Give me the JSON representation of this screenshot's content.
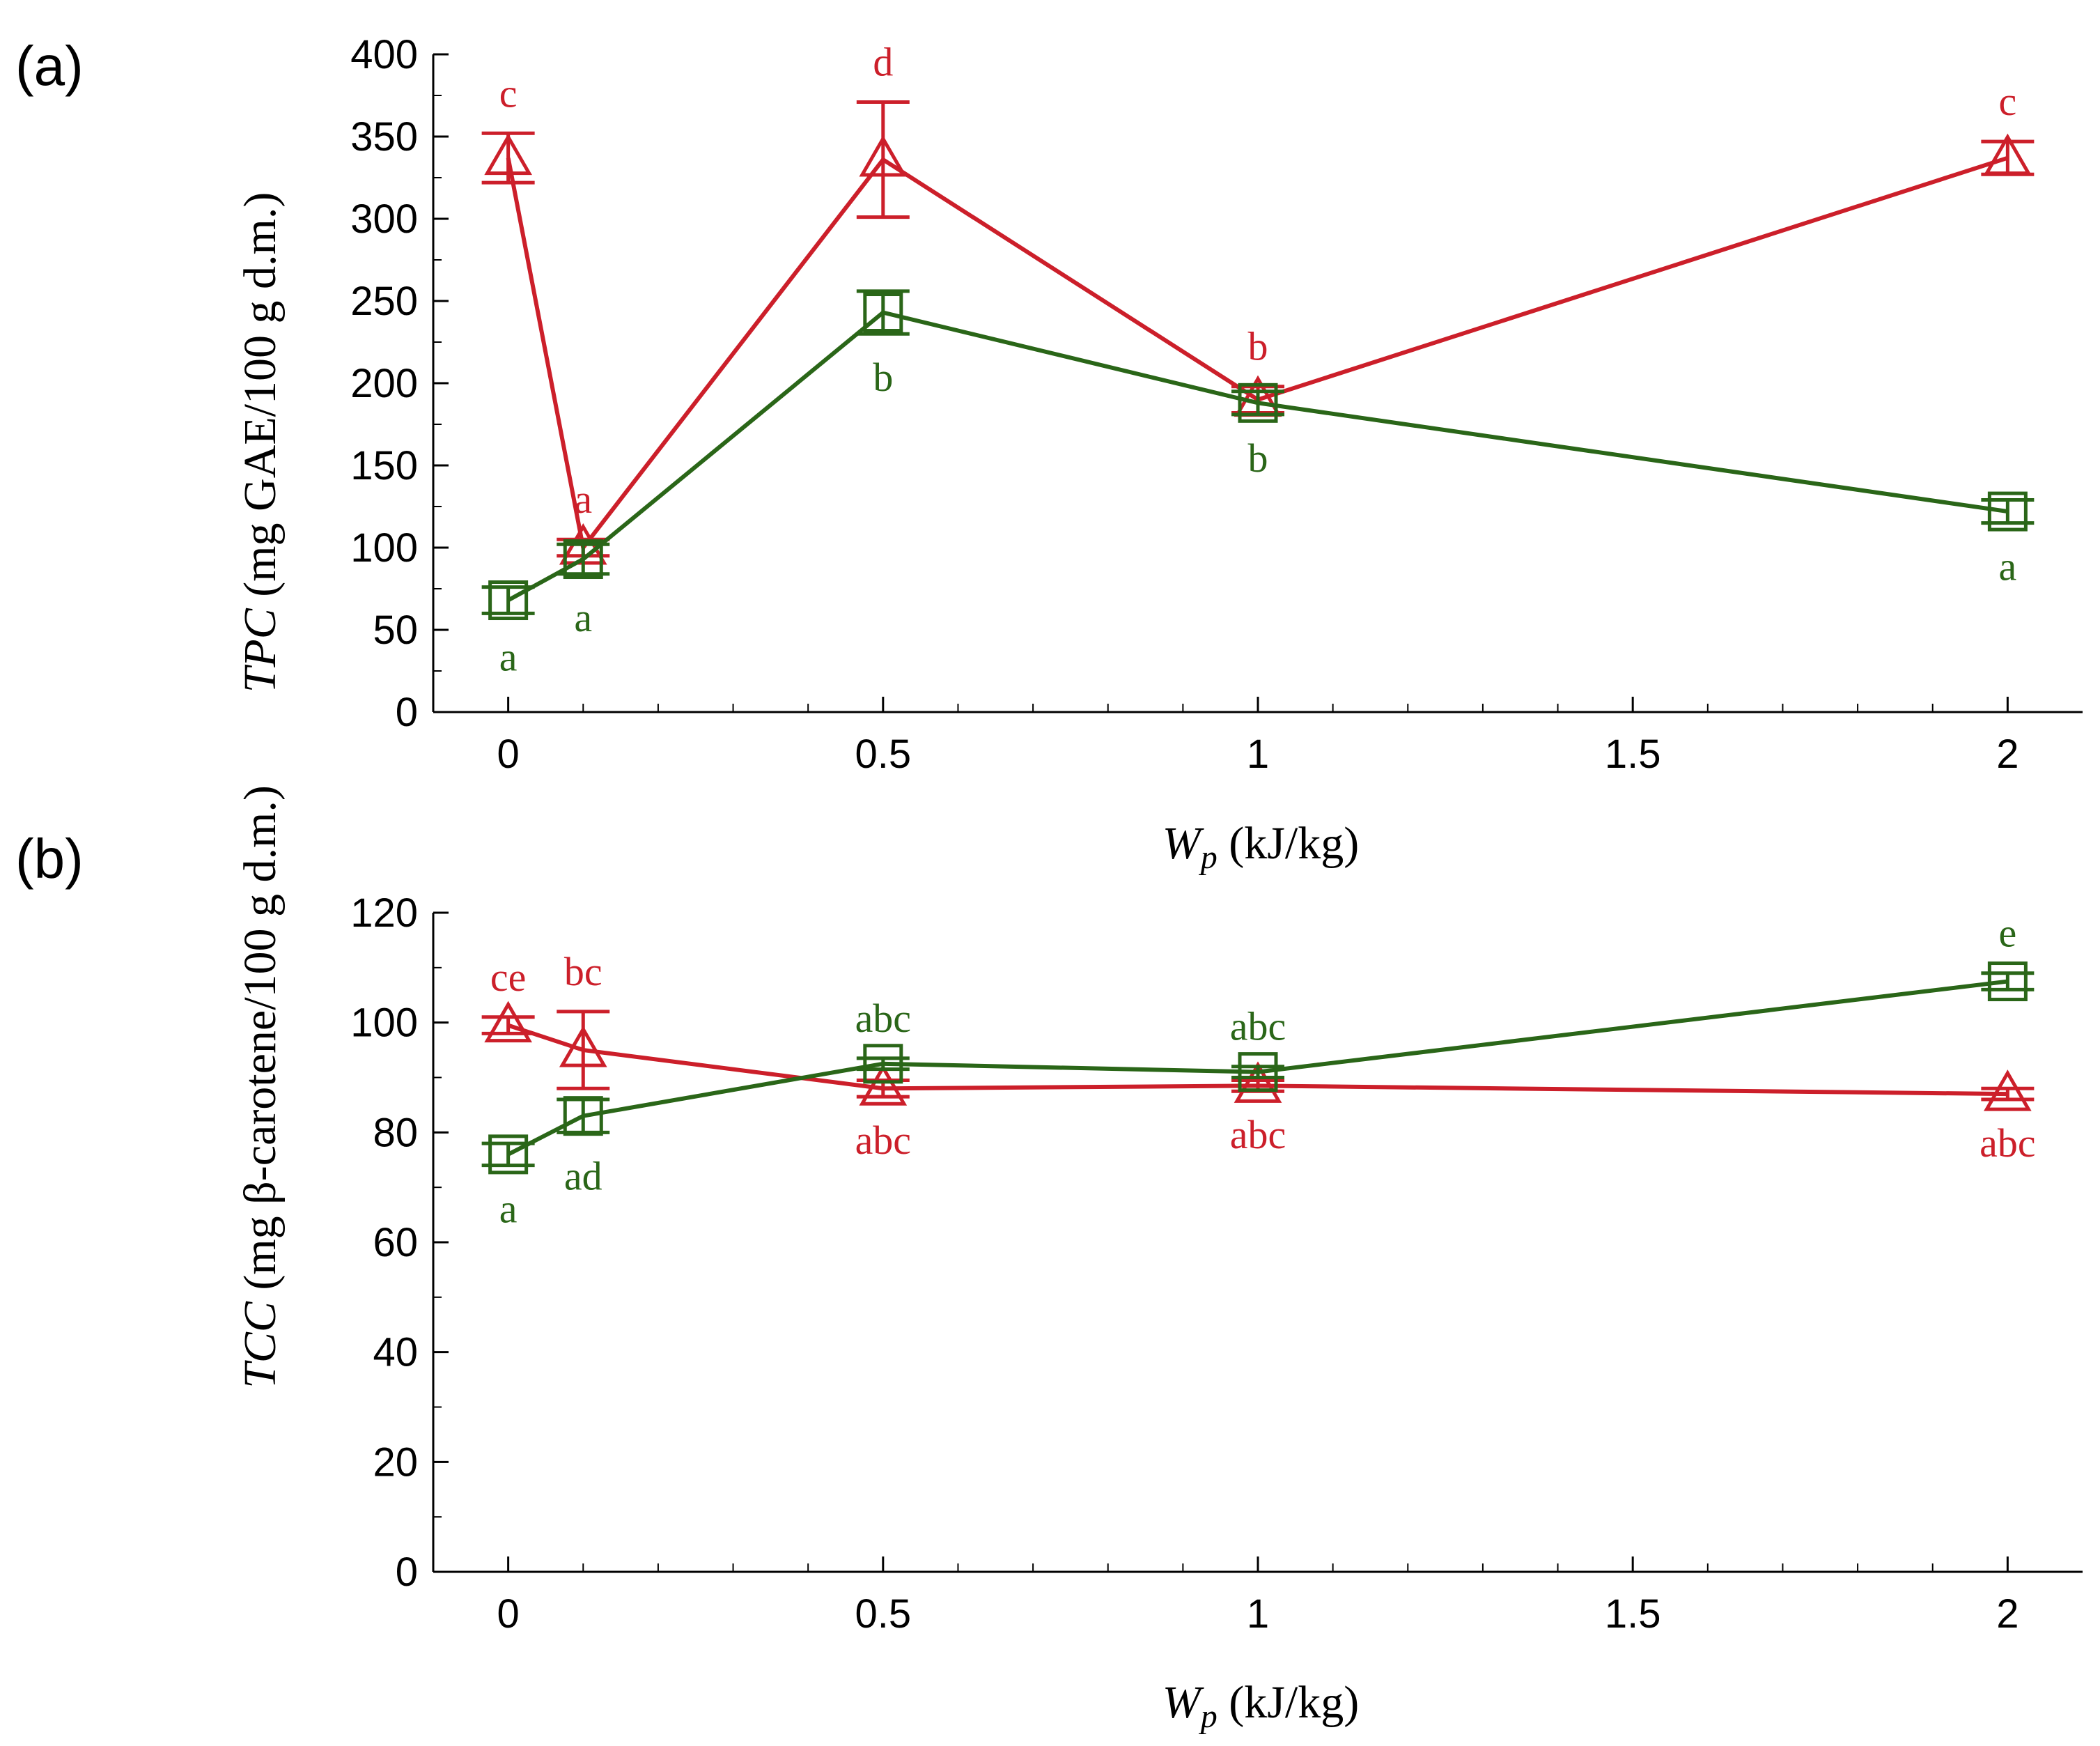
{
  "chart_data": [
    {
      "type": "line",
      "panel_label": "(a)",
      "ylabel_italic": "TPC",
      "ylabel_rest": " (mg GAE/100 g d.m.)",
      "xlabel_main": "W",
      "xlabel_sub": "p",
      "xlabel_rest": " (kJ/kg)",
      "xlim": [
        -0.1,
        2.1
      ],
      "ylim": [
        0,
        400
      ],
      "xticks": [
        0,
        0.5,
        1,
        1.5,
        2
      ],
      "xtick_labels": [
        "0",
        "0.5",
        "1",
        "1.5",
        "2"
      ],
      "yticks": [
        0,
        50,
        100,
        150,
        200,
        250,
        300,
        350,
        400
      ],
      "ytick_labels": [
        "0",
        "50",
        "100",
        "150",
        "200",
        "250",
        "300",
        "350",
        "400"
      ],
      "series": [
        {
          "name": "red-triangles",
          "color": "#cc1f2a",
          "marker": "triangle",
          "x": [
            0,
            0.1,
            0.5,
            1,
            2
          ],
          "y": [
            337,
            100,
            336,
            190,
            337
          ],
          "err": [
            15,
            5,
            35,
            8,
            10
          ],
          "labels": [
            "c",
            "a",
            "d",
            "b",
            "c"
          ],
          "label_pos": [
            "above",
            "above",
            "above",
            "above",
            "above"
          ]
        },
        {
          "name": "green-squares",
          "color": "#2a6618",
          "marker": "square",
          "x": [
            0,
            0.1,
            0.5,
            1,
            2
          ],
          "y": [
            68,
            93,
            243,
            188,
            122
          ],
          "err": [
            8,
            9,
            13,
            7,
            7
          ],
          "labels": [
            "a",
            "a",
            "b",
            "b",
            "a"
          ],
          "label_pos": [
            "below",
            "below",
            "below",
            "below",
            "below"
          ]
        }
      ]
    },
    {
      "type": "line",
      "panel_label": "(b)",
      "ylabel_italic": "TCC",
      "ylabel_rest": " (mg β-carotene/100 g d.m.)",
      "xlabel_main": "W",
      "xlabel_sub": "p",
      "xlabel_rest": " (kJ/kg)",
      "xlim": [
        -0.1,
        2.1
      ],
      "ylim": [
        0,
        120
      ],
      "xticks": [
        0,
        0.5,
        1,
        1.5,
        2
      ],
      "xtick_labels": [
        "0",
        "0.5",
        "1",
        "1.5",
        "2"
      ],
      "yticks": [
        0,
        20,
        40,
        60,
        80,
        100,
        120
      ],
      "ytick_labels": [
        "0",
        "20",
        "40",
        "60",
        "80",
        "100",
        "120"
      ],
      "series": [
        {
          "name": "red-triangles",
          "color": "#cc1f2a",
          "marker": "triangle",
          "x": [
            0,
            0.1,
            0.5,
            1,
            2
          ],
          "y": [
            99.5,
            95,
            88,
            88.5,
            87
          ],
          "err": [
            1.5,
            7,
            1.5,
            1,
            1
          ],
          "labels": [
            "ce",
            "bc",
            "abc",
            "abc",
            "abc"
          ],
          "label_pos": [
            "above",
            "above",
            "below",
            "below",
            "below"
          ]
        },
        {
          "name": "green-squares",
          "color": "#2a6618",
          "marker": "square",
          "x": [
            0,
            0.1,
            0.5,
            1,
            2
          ],
          "y": [
            76,
            83,
            92.5,
            91,
            107.5
          ],
          "err": [
            2,
            3,
            1,
            1,
            1.5
          ],
          "labels": [
            "a",
            "ad",
            "abc",
            "abc",
            "e"
          ],
          "label_pos": [
            "below",
            "below",
            "above",
            "above",
            "above"
          ]
        }
      ]
    }
  ]
}
